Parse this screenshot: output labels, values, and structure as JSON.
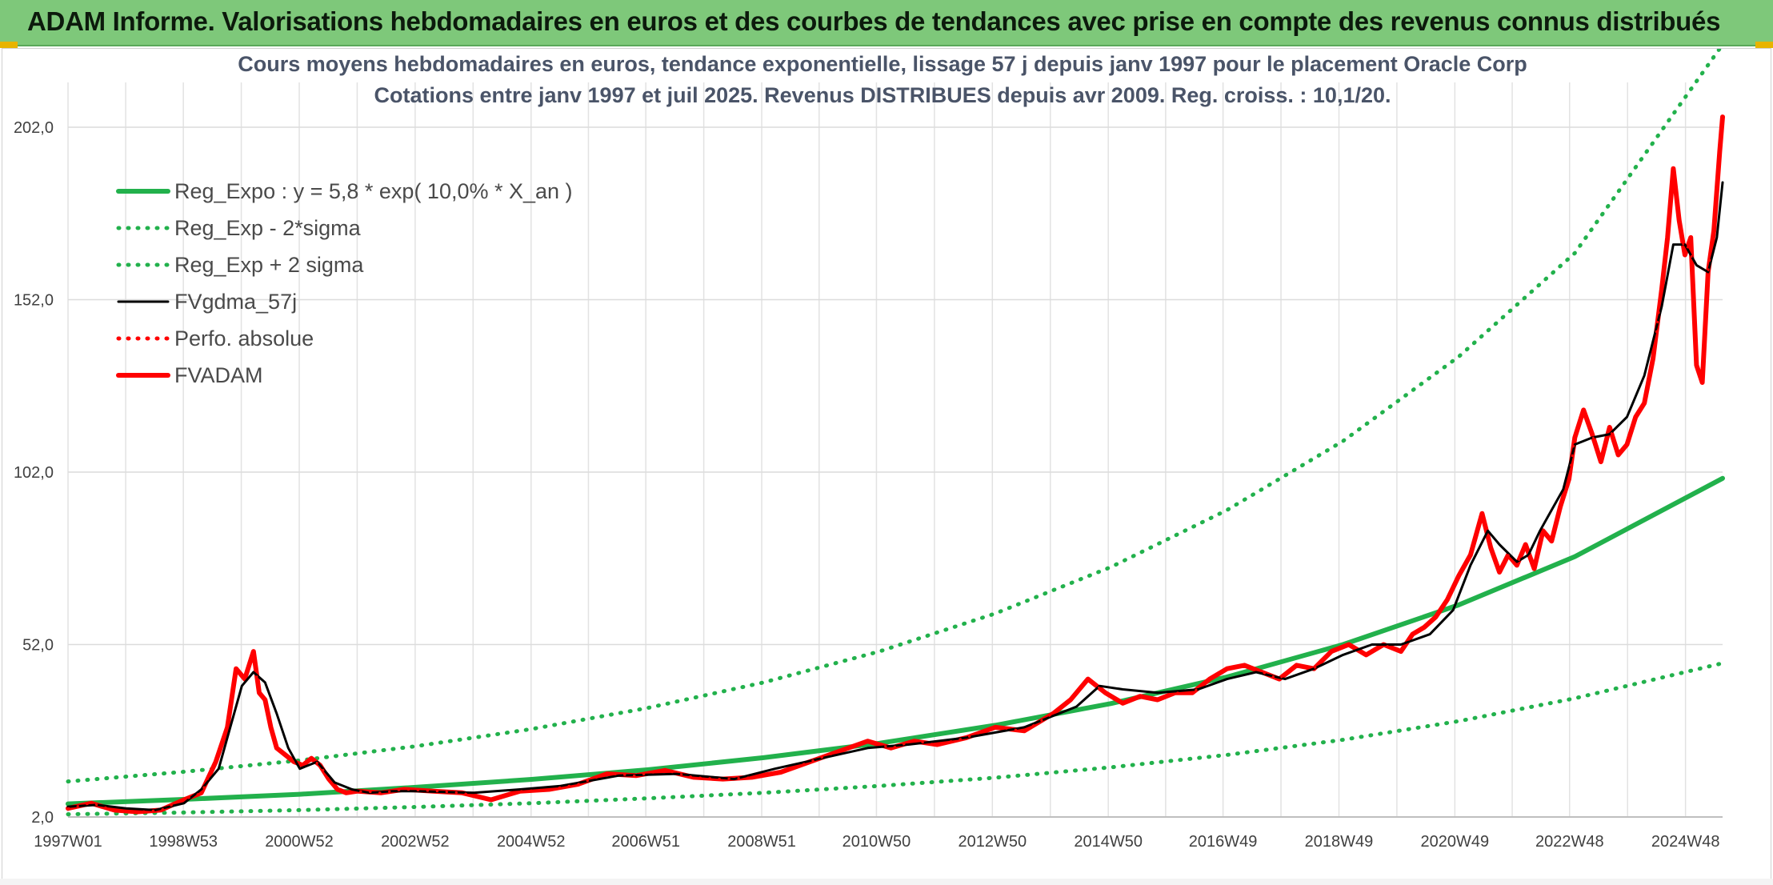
{
  "banner": {
    "title": "ADAM Informe. Valorisations hebdomadaires en euros et des courbes de tendances avec prise en compte des revenus connus distribués"
  },
  "chart_data": {
    "type": "line",
    "title": "Cours moyens hebdomadaires en euros, tendance exponentielle, lissage 57 j depuis janv 1997 pour le placement Oracle Corp",
    "subtitle": "Cotations entre janv 1997 et juil 2025. Revenus DISTRIBUES depuis avr 2009. Reg. croiss. : 10,1/20.",
    "xlabel": "",
    "ylabel": "",
    "x_range": [
      1997.0,
      2025.55
    ],
    "ylim": [
      2.0,
      215.0
    ],
    "y_ticks": [
      2.0,
      52.0,
      102.0,
      152.0,
      202.0
    ],
    "y_tick_labels": [
      "2,0",
      "52,0",
      "102,0",
      "152,0",
      "202,0"
    ],
    "x_ticks": [
      1997.0,
      1998.99,
      2000.99,
      2002.99,
      2004.99,
      2006.97,
      2008.97,
      2010.95,
      2012.95,
      2014.95,
      2016.93,
      2018.93,
      2020.93,
      2022.91,
      2024.91
    ],
    "x_tick_labels": [
      "1997W01",
      "1998W53",
      "2000W52",
      "2002W52",
      "2004W52",
      "2006W51",
      "2008W51",
      "2010W50",
      "2012W50",
      "2014W50",
      "2016W49",
      "2018W49",
      "2020W49",
      "2022W48",
      "2024W48"
    ],
    "grid": true,
    "legend_position": "top-left",
    "legend": [
      {
        "label": "Reg_Expo : y = 5,8 * exp( 10,0% *  X_an )",
        "color": "#22b14c",
        "style": "solid-thick"
      },
      {
        "label": "Reg_Exp - 2*sigma",
        "color": "#22b14c",
        "style": "dotted"
      },
      {
        "label": "Reg_Exp + 2 sigma",
        "color": "#22b14c",
        "style": "dotted"
      },
      {
        "label": "FVgdma_57j",
        "color": "#000000",
        "style": "solid"
      },
      {
        "label": "Perfo. absolue",
        "color": "#ff0000",
        "style": "dotted"
      },
      {
        "label": "FVADAM",
        "color": "#ff0000",
        "style": "solid-thick"
      }
    ],
    "series": [
      {
        "name": "Reg_Expo : y = 5,8 * exp( 10,0% *  X_an )",
        "color": "#22b14c",
        "x": [
          1997.0,
          1999.0,
          2001.0,
          2003.0,
          2005.0,
          2007.0,
          2009.0,
          2011.0,
          2013.0,
          2015.0,
          2017.0,
          2019.0,
          2021.0,
          2023.0,
          2025.55
        ],
        "values": [
          5.8,
          7.1,
          8.6,
          10.6,
          12.9,
          15.7,
          19.2,
          23.4,
          28.6,
          34.9,
          42.6,
          52.0,
          63.5,
          77.5,
          100.2
        ]
      },
      {
        "name": "Reg_Exp - 2*sigma",
        "color": "#22b14c",
        "x": [
          1997.0,
          1999.0,
          2001.0,
          2003.0,
          2005.0,
          2007.0,
          2009.0,
          2011.0,
          2013.0,
          2015.0,
          2017.0,
          2019.0,
          2021.0,
          2023.0,
          2025.55
        ],
        "values": [
          2.8,
          3.3,
          4.0,
          4.9,
          6.0,
          7.4,
          9.0,
          11.0,
          13.4,
          16.4,
          20.0,
          24.4,
          29.8,
          36.4,
          46.6
        ]
      },
      {
        "name": "Reg_Exp + 2 sigma",
        "color": "#22b14c",
        "x": [
          1997.0,
          1999.0,
          2001.0,
          2003.0,
          2005.0,
          2007.0,
          2009.0,
          2011.0,
          2013.0,
          2015.0,
          2017.0,
          2019.0,
          2021.0,
          2023.0,
          2025.55
        ],
        "values": [
          12.3,
          15.1,
          18.4,
          22.5,
          27.5,
          33.6,
          41.0,
          50.0,
          61.0,
          74.5,
          91.0,
          111.0,
          135.5,
          165.5,
          226.0
        ]
      },
      {
        "name": "FVgdma_57j",
        "color": "#000000",
        "x": [
          1997.0,
          1997.5,
          1998.0,
          1998.5,
          1999.0,
          1999.3,
          1999.6,
          1999.8,
          2000.0,
          2000.2,
          2000.4,
          2000.6,
          2000.8,
          2001.0,
          2001.3,
          2001.6,
          2001.9,
          2002.2,
          2002.6,
          2003.0,
          2004.0,
          2004.8,
          2005.5,
          2006.5,
          2007.5,
          2008.5,
          2009.2,
          2010.0,
          2010.8,
          2011.5,
          2012.5,
          2013.5,
          2014.4,
          2014.8,
          2015.2,
          2015.8,
          2016.5,
          2017.0,
          2017.5,
          2018.0,
          2018.5,
          2019.0,
          2019.5,
          2020.0,
          2020.5,
          2020.9,
          2021.2,
          2021.5,
          2021.7,
          2022.0,
          2022.2,
          2022.4,
          2022.6,
          2022.8,
          2023.0,
          2023.3,
          2023.6,
          2023.9,
          2024.2,
          2024.5,
          2024.7,
          2024.9,
          2025.1,
          2025.3,
          2025.45,
          2025.55
        ],
        "values": [
          5.0,
          5.5,
          4.5,
          4.0,
          6.0,
          10.0,
          16.0,
          28.0,
          40.0,
          44.0,
          41.0,
          32.0,
          22.0,
          16.0,
          18.0,
          12.0,
          10.0,
          9.0,
          9.5,
          9.5,
          9.0,
          10.0,
          11.0,
          14.0,
          14.5,
          13.0,
          16.0,
          19.0,
          22.0,
          23.0,
          25.0,
          28.0,
          34.0,
          40.0,
          39.0,
          38.0,
          39.0,
          42.0,
          44.0,
          42.0,
          45.0,
          49.0,
          52.0,
          52.0,
          55.0,
          62.0,
          75.0,
          85.0,
          81.0,
          76.0,
          78.0,
          85.0,
          91.0,
          97.0,
          110.0,
          112.0,
          113.0,
          118.0,
          130.0,
          150.0,
          168.0,
          168.0,
          162.0,
          160.0,
          170.0,
          186.0
        ]
      },
      {
        "name": "Perfo. absolue",
        "color": "#ff0000",
        "x": [
          1997.0,
          1997.4,
          1997.8,
          1998.2,
          1998.6,
          1999.0,
          1999.3,
          1999.55,
          1999.75,
          1999.9,
          2000.05,
          2000.2,
          2000.3,
          2000.4,
          2000.5,
          2000.6,
          2000.75,
          2000.9,
          2001.05,
          2001.2,
          2001.35,
          2001.5,
          2001.65,
          2001.8,
          2002.0,
          2002.4,
          2002.8,
          2003.3,
          2003.8,
          2004.3,
          2004.8,
          2005.3,
          2005.8,
          2006.3,
          2006.8,
          2007.3,
          2007.8,
          2008.3,
          2008.8,
          2009.3,
          2009.8,
          2010.3,
          2010.8,
          2011.2,
          2011.6,
          2012.0,
          2012.5,
          2013.0,
          2013.5,
          2014.0,
          2014.3,
          2014.6,
          2014.9,
          2015.2,
          2015.5,
          2015.8,
          2016.1,
          2016.4,
          2016.7,
          2017.0,
          2017.3,
          2017.6,
          2017.9,
          2018.2,
          2018.5,
          2018.8,
          2019.1,
          2019.4,
          2019.7,
          2020.0,
          2020.2,
          2020.4,
          2020.6,
          2020.8,
          2021.0,
          2021.2,
          2021.4,
          2021.55,
          2021.7,
          2021.85,
          2022.0,
          2022.15,
          2022.3,
          2022.45,
          2022.6,
          2022.75,
          2022.9,
          2023.0,
          2023.15,
          2023.3,
          2023.45,
          2023.6,
          2023.75,
          2023.9,
          2024.05,
          2024.2,
          2024.35,
          2024.5,
          2024.6,
          2024.7,
          2024.8,
          2024.9,
          2025.0,
          2025.1,
          2025.2,
          2025.3,
          2025.4,
          2025.5,
          2025.55
        ],
        "values": [
          4.5,
          6.0,
          4.0,
          3.5,
          4.0,
          7.0,
          9.0,
          18.0,
          28.0,
          45.0,
          42.0,
          50.0,
          38.0,
          36.0,
          28.0,
          22.0,
          20.0,
          18.0,
          17.0,
          19.0,
          17.0,
          13.0,
          10.0,
          9.0,
          9.5,
          9.0,
          10.0,
          9.5,
          9.0,
          7.0,
          9.5,
          10.0,
          11.5,
          14.5,
          14.0,
          15.5,
          13.5,
          13.0,
          13.5,
          15.0,
          18.0,
          21.0,
          24.0,
          22.0,
          24.0,
          23.0,
          25.0,
          28.0,
          27.0,
          32.0,
          36.0,
          42.0,
          38.0,
          35.0,
          37.0,
          36.0,
          38.0,
          38.0,
          42.0,
          45.0,
          46.0,
          44.0,
          42.0,
          46.0,
          45.0,
          50.0,
          52.0,
          49.0,
          52.0,
          50.0,
          55.0,
          57.0,
          60.0,
          65.0,
          72.0,
          78.0,
          90.0,
          80.0,
          73.0,
          78.0,
          75.0,
          81.0,
          74.0,
          85.0,
          82.0,
          92.0,
          100.0,
          112.0,
          120.0,
          113.0,
          105.0,
          115.0,
          107.0,
          110.0,
          118.0,
          122.0,
          135.0,
          155.0,
          170.0,
          190.0,
          175.0,
          165.0,
          170.0,
          133.0,
          128.0,
          160.0,
          172.0,
          195.0,
          205.0
        ]
      },
      {
        "name": "FVADAM",
        "color": "#ff0000",
        "x": [
          1997.0,
          1997.4,
          1997.8,
          1998.2,
          1998.6,
          1999.0,
          1999.3,
          1999.55,
          1999.75,
          1999.9,
          2000.05,
          2000.2,
          2000.3,
          2000.4,
          2000.5,
          2000.6,
          2000.75,
          2000.9,
          2001.05,
          2001.2,
          2001.35,
          2001.5,
          2001.65,
          2001.8,
          2002.0,
          2002.4,
          2002.8,
          2003.3,
          2003.8,
          2004.3,
          2004.8,
          2005.3,
          2005.8,
          2006.3,
          2006.8,
          2007.3,
          2007.8,
          2008.3,
          2008.8,
          2009.3,
          2009.8,
          2010.3,
          2010.8,
          2011.2,
          2011.6,
          2012.0,
          2012.5,
          2013.0,
          2013.5,
          2014.0,
          2014.3,
          2014.6,
          2014.9,
          2015.2,
          2015.5,
          2015.8,
          2016.1,
          2016.4,
          2016.7,
          2017.0,
          2017.3,
          2017.6,
          2017.9,
          2018.2,
          2018.5,
          2018.8,
          2019.1,
          2019.4,
          2019.7,
          2020.0,
          2020.2,
          2020.4,
          2020.6,
          2020.8,
          2021.0,
          2021.2,
          2021.4,
          2021.55,
          2021.7,
          2021.85,
          2022.0,
          2022.15,
          2022.3,
          2022.45,
          2022.6,
          2022.75,
          2022.9,
          2023.0,
          2023.15,
          2023.3,
          2023.45,
          2023.6,
          2023.75,
          2023.9,
          2024.05,
          2024.2,
          2024.35,
          2024.5,
          2024.6,
          2024.7,
          2024.8,
          2024.9,
          2025.0,
          2025.1,
          2025.2,
          2025.3,
          2025.4,
          2025.5,
          2025.55
        ],
        "values": [
          4.5,
          6.0,
          4.0,
          3.5,
          4.0,
          7.0,
          9.0,
          18.0,
          28.0,
          45.0,
          42.0,
          50.0,
          38.0,
          36.0,
          28.0,
          22.0,
          20.0,
          18.0,
          17.0,
          19.0,
          17.0,
          13.0,
          10.0,
          9.0,
          9.5,
          9.0,
          10.0,
          9.5,
          9.0,
          7.0,
          9.5,
          10.0,
          11.5,
          14.5,
          14.0,
          15.5,
          13.5,
          13.0,
          13.5,
          15.0,
          18.0,
          21.0,
          24.0,
          22.0,
          24.0,
          23.0,
          25.0,
          28.0,
          27.0,
          32.0,
          36.0,
          42.0,
          38.0,
          35.0,
          37.0,
          36.0,
          38.0,
          38.0,
          42.0,
          45.0,
          46.0,
          44.0,
          42.0,
          46.0,
          45.0,
          50.0,
          52.0,
          49.0,
          52.0,
          50.0,
          55.0,
          57.0,
          60.0,
          65.0,
          72.0,
          78.0,
          90.0,
          80.0,
          73.0,
          78.0,
          75.0,
          81.0,
          74.0,
          85.0,
          82.0,
          92.0,
          100.0,
          112.0,
          120.0,
          113.0,
          105.0,
          115.0,
          107.0,
          110.0,
          118.0,
          122.0,
          135.0,
          155.0,
          170.0,
          190.0,
          175.0,
          165.0,
          170.0,
          133.0,
          128.0,
          160.0,
          172.0,
          195.0,
          205.0
        ]
      }
    ]
  }
}
